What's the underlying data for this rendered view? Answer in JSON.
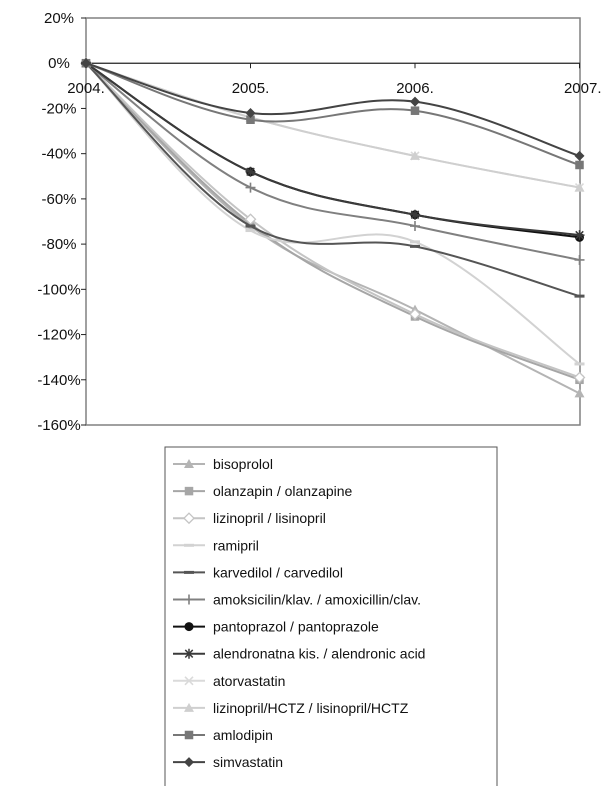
{
  "chart_data": {
    "type": "line",
    "categories": [
      "2004.",
      "2005.",
      "2006.",
      "2007."
    ],
    "ylim": [
      -1.6,
      0.2
    ],
    "y_ticks": [
      0.2,
      0,
      -0.2,
      -0.4,
      -0.6,
      -0.8,
      -1.0,
      -1.2,
      -1.4,
      -1.6
    ],
    "y_tick_labels": [
      "20%",
      "0%",
      "-20%",
      "-40%",
      "-60%",
      "-80%",
      "-100%",
      "-120%",
      "-140%",
      "-160%"
    ],
    "grid": false,
    "legend_position": "bottom",
    "series": [
      {
        "name": "bisoprolol",
        "values": [
          0,
          -0.72,
          -1.09,
          -1.46
        ],
        "color": "#b4b4b4",
        "marker": "triangle",
        "width": 2
      },
      {
        "name": "olanzapin / olanzapine",
        "values": [
          0,
          -0.71,
          -1.12,
          -1.4
        ],
        "color": "#a6a6a6",
        "marker": "square",
        "width": 2
      },
      {
        "name": "lizinopril / lisinopril",
        "values": [
          0,
          -0.69,
          -1.11,
          -1.39
        ],
        "color": "#c4c4c4",
        "marker": "diamond-open",
        "width": 2
      },
      {
        "name": "ramipril",
        "values": [
          0,
          -0.74,
          -0.79,
          -1.33
        ],
        "color": "#d2d2d2",
        "marker": "dash",
        "width": 2
      },
      {
        "name": "karvedilol / carvedilol",
        "values": [
          0,
          -0.72,
          -0.81,
          -1.03
        ],
        "color": "#555555",
        "marker": "dash",
        "width": 2
      },
      {
        "name": "amoksicilin/klav. / amoxicillin/clav.",
        "values": [
          0,
          -0.55,
          -0.72,
          -0.87
        ],
        "color": "#808080",
        "marker": "plus",
        "width": 2
      },
      {
        "name": "pantoprazol / pantoprazole",
        "values": [
          0,
          -0.48,
          -0.67,
          -0.77
        ],
        "color": "#111111",
        "marker": "circle",
        "width": 2
      },
      {
        "name": "alendronatna kis. / alendronic acid",
        "values": [
          0,
          -0.48,
          -0.67,
          -0.76
        ],
        "color": "#3a3a3a",
        "marker": "star",
        "width": 2
      },
      {
        "name": "atorvastatin",
        "values": [
          0,
          -0.24,
          -0.41,
          -0.55
        ],
        "color": "#dadada",
        "marker": "x",
        "width": 2
      },
      {
        "name": "lizinopril/HCTZ / lisinopril/HCTZ",
        "values": [
          0,
          -0.24,
          -0.41,
          -0.55
        ],
        "color": "#cfcfcf",
        "marker": "triangle",
        "width": 2
      },
      {
        "name": "amlodipin",
        "values": [
          0,
          -0.25,
          -0.21,
          -0.45
        ],
        "color": "#777777",
        "marker": "square",
        "width": 2
      },
      {
        "name": "simvastatin",
        "values": [
          0,
          -0.22,
          -0.17,
          -0.41
        ],
        "color": "#444444",
        "marker": "diamond",
        "width": 2
      }
    ]
  }
}
